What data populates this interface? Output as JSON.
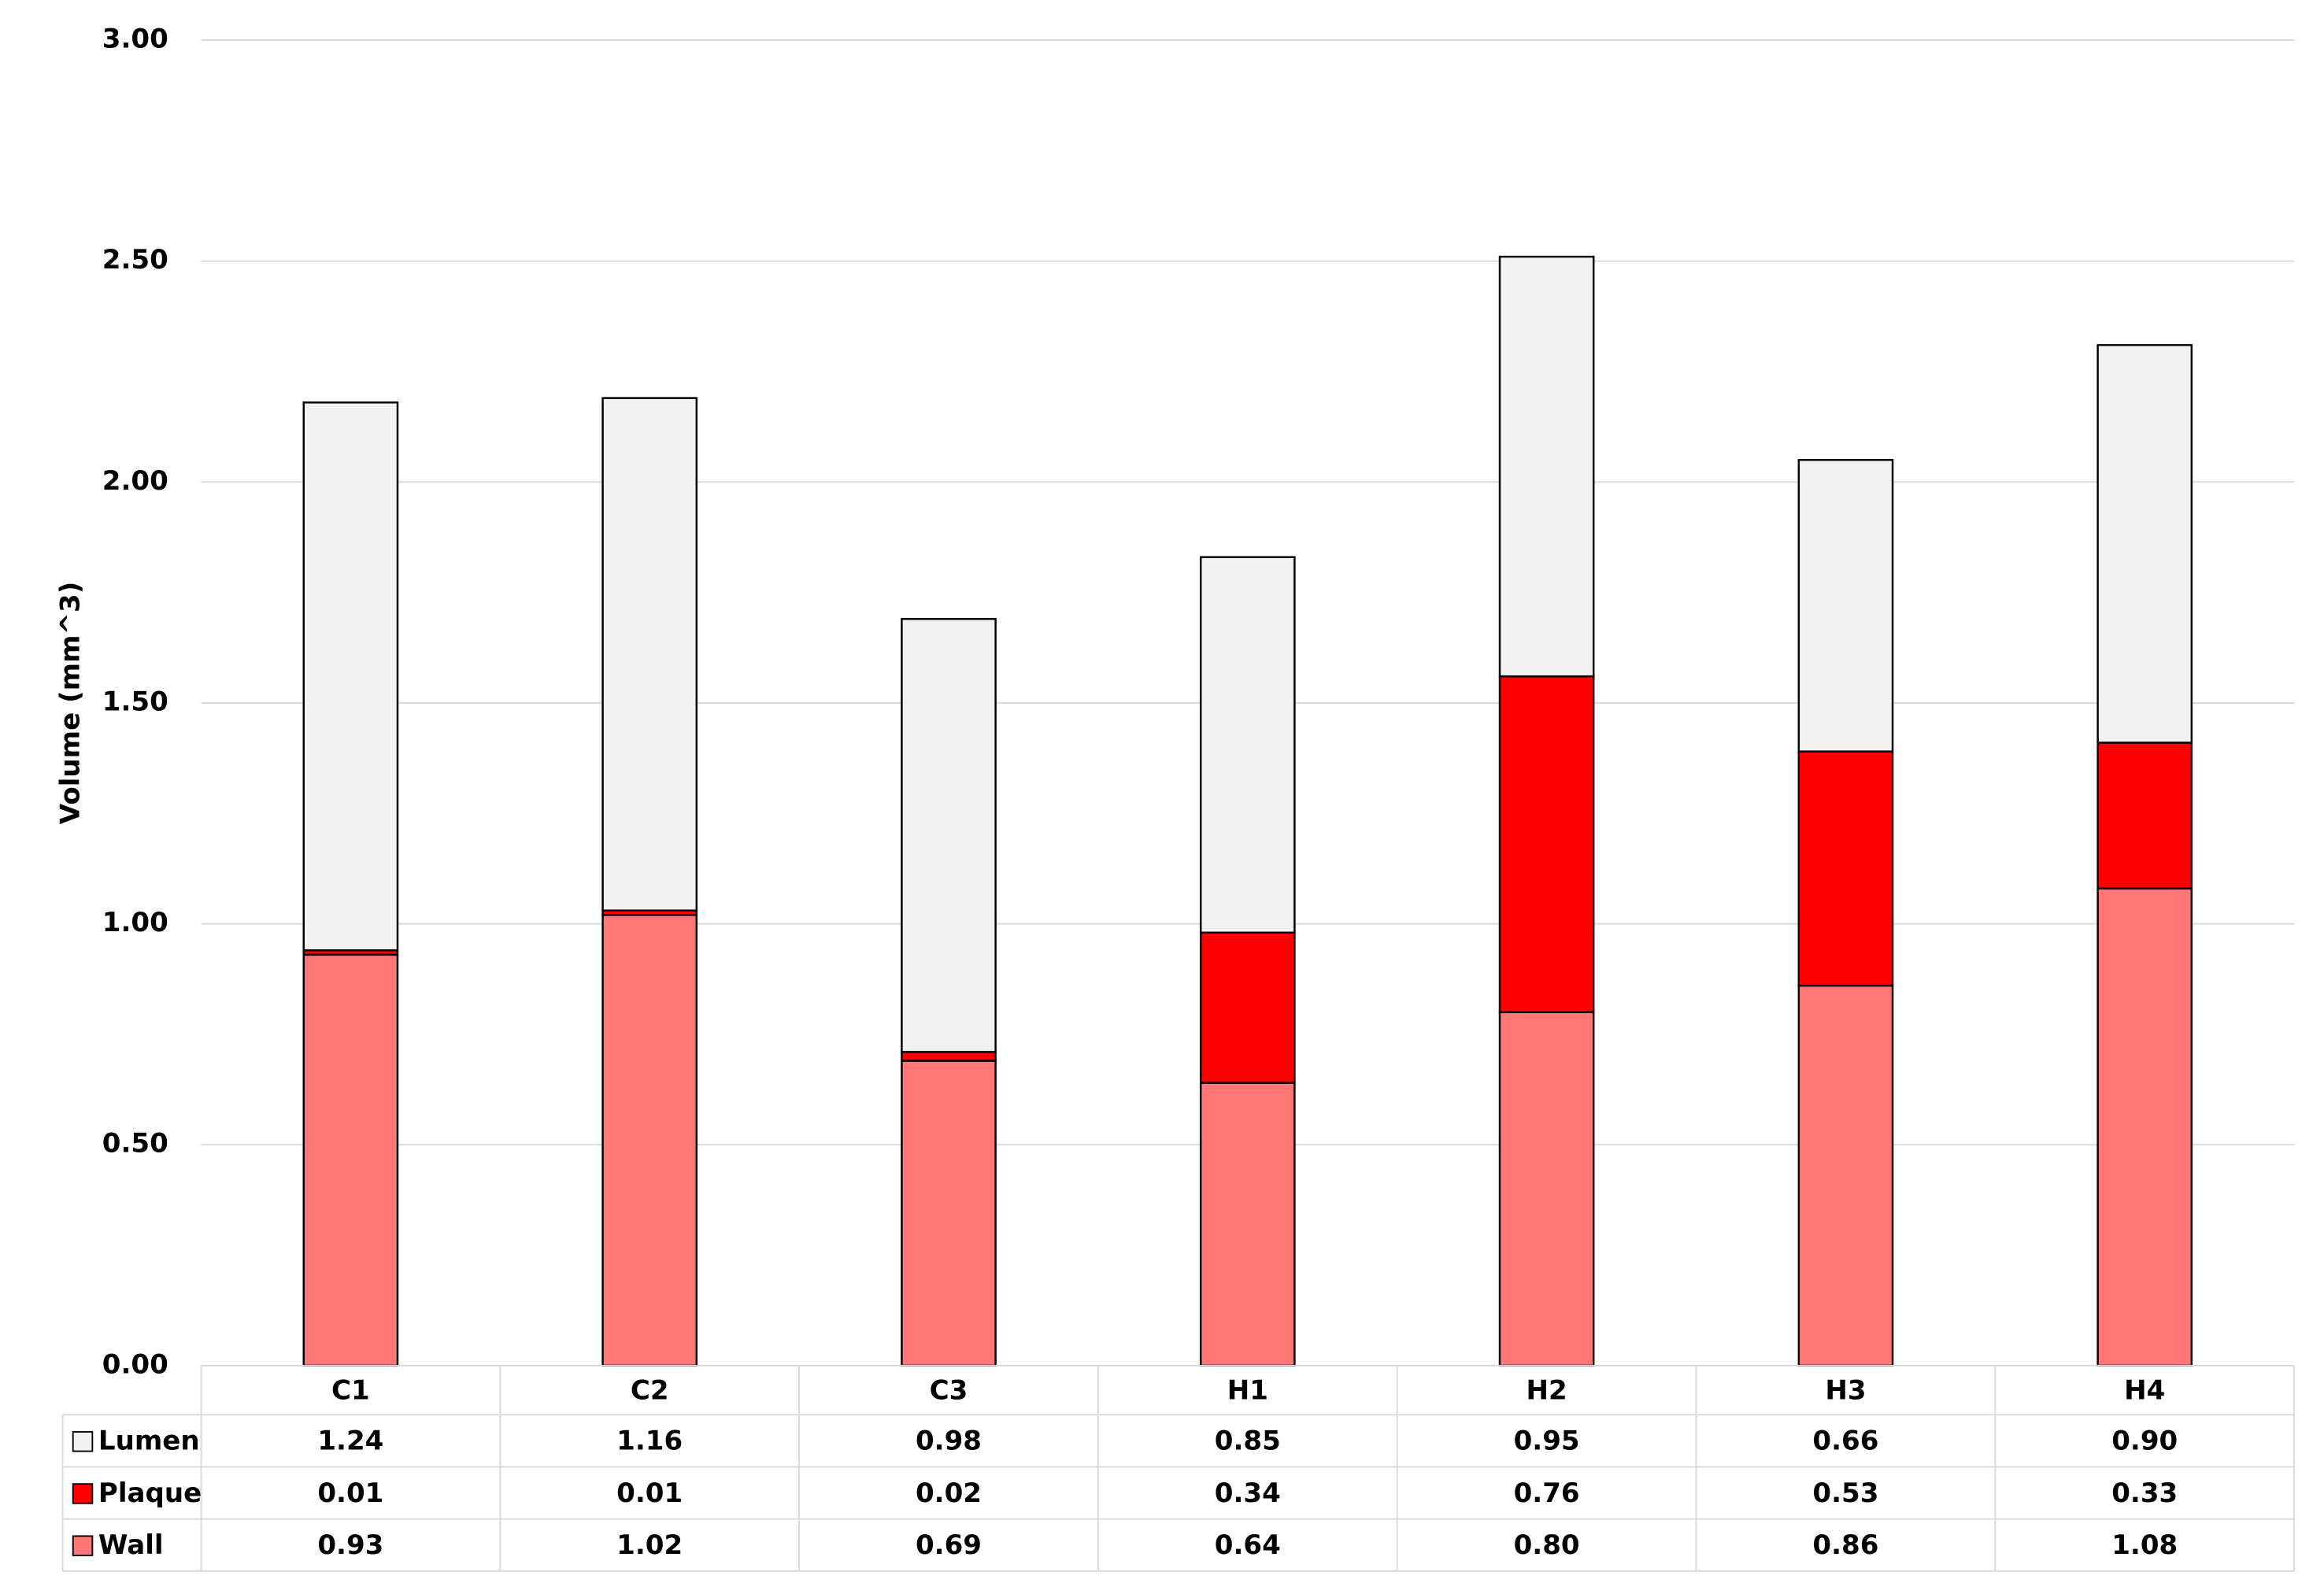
{
  "chart_data": {
    "type": "stacked_bar",
    "y_label": "Volume (mm^3)",
    "categories": [
      "C1",
      "C2",
      "C3",
      "H1",
      "H2",
      "H3",
      "H4"
    ],
    "series": [
      {
        "name": "Lumen",
        "color": "#f2f2f2",
        "values": [
          1.24,
          1.16,
          0.98,
          0.85,
          0.95,
          0.66,
          0.9
        ],
        "value_labels": [
          "1.24",
          "1.16",
          "0.98",
          "0.85",
          "0.95",
          "0.66",
          "0.90"
        ]
      },
      {
        "name": "Plaque",
        "color": "#ff0000",
        "values": [
          0.01,
          0.01,
          0.02,
          0.34,
          0.76,
          0.53,
          0.33
        ],
        "value_labels": [
          "0.01",
          "0.01",
          "0.02",
          "0.34",
          "0.76",
          "0.53",
          "0.33"
        ]
      },
      {
        "name": "Wall",
        "color": "#ff7777",
        "values": [
          0.93,
          1.02,
          0.69,
          0.64,
          0.8,
          0.86,
          1.08
        ],
        "value_labels": [
          "0.93",
          "1.02",
          "0.69",
          "0.64",
          "0.80",
          "0.86",
          "1.08"
        ]
      }
    ],
    "ylim": [
      0,
      3
    ],
    "yticks": [
      {
        "value": 0,
        "label": "0.00"
      },
      {
        "value": 0.5,
        "label": "0.50"
      },
      {
        "value": 1,
        "label": "1.00"
      },
      {
        "value": 1.5,
        "label": "1.50"
      },
      {
        "value": 2,
        "label": "2.00"
      },
      {
        "value": 2.5,
        "label": "2.50"
      },
      {
        "value": 3,
        "label": "3.00"
      }
    ],
    "grid": true,
    "data_table": true
  }
}
